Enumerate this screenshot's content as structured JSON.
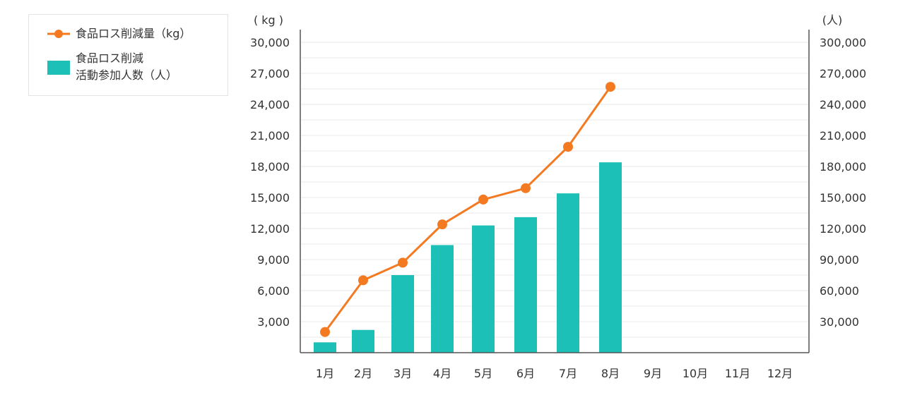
{
  "legend": {
    "line_label": "食品ロス削減量（kg）",
    "bar_label_line1": "食品ロス削減",
    "bar_label_line2": "活動参加人数（人）"
  },
  "chart_data": {
    "type": "bar",
    "categories": [
      "1月",
      "2月",
      "3月",
      "4月",
      "5月",
      "6月",
      "7月",
      "8月",
      "9月",
      "10月",
      "11月",
      "12月"
    ],
    "series": [
      {
        "name": "食品ロス削減量（kg）",
        "type": "line",
        "axis": "left",
        "color": "#f47a22",
        "values": [
          2000,
          7000,
          8700,
          12400,
          14800,
          15900,
          19900,
          25700,
          null,
          null,
          null,
          null
        ]
      },
      {
        "name": "食品ロス削減活動参加人数（人）",
        "type": "bar",
        "axis": "right",
        "color": "#1cc0b7",
        "values": [
          10000,
          22000,
          75000,
          104000,
          123000,
          131000,
          154000,
          184000,
          null,
          null,
          null,
          null
        ]
      }
    ],
    "left_axis": {
      "unit": "( kg )",
      "ylim": [
        0,
        30000
      ],
      "ticks": [
        3000,
        6000,
        9000,
        12000,
        15000,
        18000,
        21000,
        24000,
        27000,
        30000
      ],
      "tick_labels": [
        "3,000",
        "6,000",
        "9,000",
        "12,000",
        "15,000",
        "18,000",
        "21,000",
        "24,000",
        "27,000",
        "30,000"
      ]
    },
    "right_axis": {
      "unit": "(人)",
      "ylim": [
        0,
        300000
      ],
      "ticks": [
        30000,
        60000,
        90000,
        120000,
        150000,
        180000,
        210000,
        240000,
        270000,
        300000
      ],
      "tick_labels": [
        "30,000",
        "60,000",
        "90,000",
        "120,000",
        "150,000",
        "180,000",
        "210,000",
        "240,000",
        "270,000",
        "300,000"
      ]
    },
    "grid": true,
    "legend_position": "top-left"
  }
}
